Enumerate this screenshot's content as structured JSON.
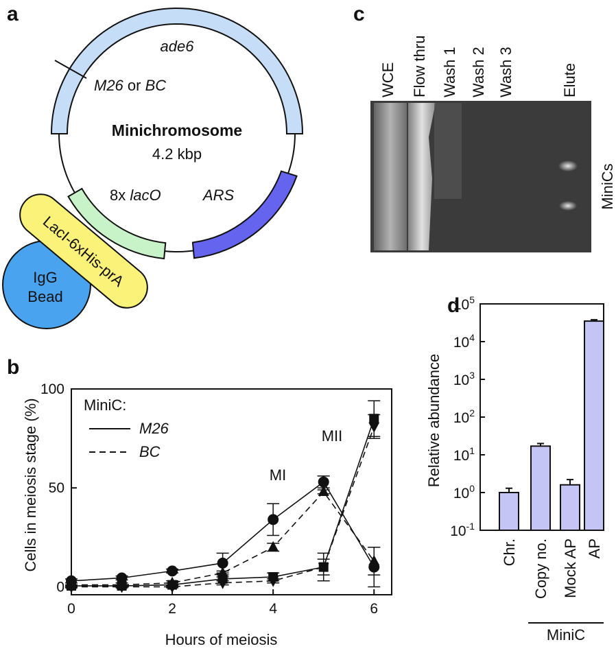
{
  "panel_labels": [
    "a",
    "b",
    "c",
    "d"
  ],
  "diagram": {
    "gene": "ade6",
    "site_a": "M26",
    "site_join": "or",
    "site_b": "BC",
    "name": "Minichromosome",
    "size": "4.2 kbp",
    "lac_count": "8x",
    "lac_site": "lacO",
    "ars": "ARS",
    "fusion": "LacI-6xHis-prA",
    "bead_line1": "IgG",
    "bead_line2": "Bead"
  },
  "gel": {
    "lanes": [
      "WCE",
      "Flow thru",
      "Wash 1",
      "Wash 2",
      "Wash 3",
      "Elute"
    ],
    "band_label": "MiniCs"
  },
  "chart_data": [
    {
      "type": "line",
      "x_label": "Hours of meiosis",
      "y_label": "Cells in meiosis stage (%)",
      "x": [
        0,
        1,
        2,
        3,
        4,
        5,
        6
      ],
      "xlim": [
        0,
        6.35
      ],
      "xticks": [
        0,
        2,
        4,
        6
      ],
      "ylim": [
        -4,
        100
      ],
      "yticks": [
        0,
        50,
        100
      ],
      "legend": {
        "title": "MiniC:",
        "entries": [
          {
            "label": "M26",
            "line_style": "solid"
          },
          {
            "label": "BC",
            "line_style": "dashed"
          }
        ]
      },
      "annotations": [
        "MI",
        "MII"
      ],
      "series": [
        {
          "marker": "circle",
          "line_style": "solid",
          "color": "#111111",
          "values": [
            3,
            4.5,
            8,
            12,
            34,
            53,
            10
          ],
          "errors": [
            1,
            1,
            1,
            5,
            8,
            3,
            10
          ]
        },
        {
          "marker": "triangle",
          "line_style": "dashed",
          "color": "#111111",
          "values": [
            1,
            1,
            2,
            7,
            20,
            48,
            13
          ],
          "errors": [
            1,
            1,
            1,
            1,
            2,
            1,
            7
          ]
        },
        {
          "marker": "square",
          "line_style": "solid",
          "color": "#111111",
          "values": [
            0.5,
            0.5,
            1,
            4,
            5,
            10,
            85
          ],
          "errors": [
            0.5,
            0.5,
            1,
            1,
            2,
            4,
            9
          ]
        },
        {
          "marker": "triangle-down",
          "line_style": "dashed",
          "color": "#111111",
          "values": [
            0,
            0,
            0,
            2,
            3,
            10,
            81
          ],
          "errors": [
            0.5,
            0.5,
            0.5,
            1,
            1,
            7,
            6
          ]
        }
      ]
    },
    {
      "type": "bar",
      "y_label": "Relative abundance",
      "log_scale": true,
      "categories": [
        "Chr.",
        "Copy no.",
        "Mock AP",
        "AP"
      ],
      "group_label": "MiniC",
      "values": [
        1,
        17,
        1.6,
        35000
      ],
      "errors": [
        0.3,
        3,
        0.6,
        3000
      ],
      "color": "#c5c5f5",
      "ylim": [
        0.1,
        100000
      ],
      "yticks": [
        {
          "value": 0.1,
          "label": "10",
          "exponent": "-1"
        },
        {
          "value": 1,
          "label": "10",
          "exponent": "0"
        },
        {
          "value": 10,
          "label": "10",
          "exponent": "1"
        },
        {
          "value": 100,
          "label": "10",
          "exponent": "2"
        },
        {
          "value": 1000,
          "label": "10",
          "exponent": "3"
        },
        {
          "value": 10000,
          "label": "10",
          "exponent": "4"
        },
        {
          "value": 100000,
          "label": "10",
          "exponent": "5"
        }
      ]
    }
  ]
}
